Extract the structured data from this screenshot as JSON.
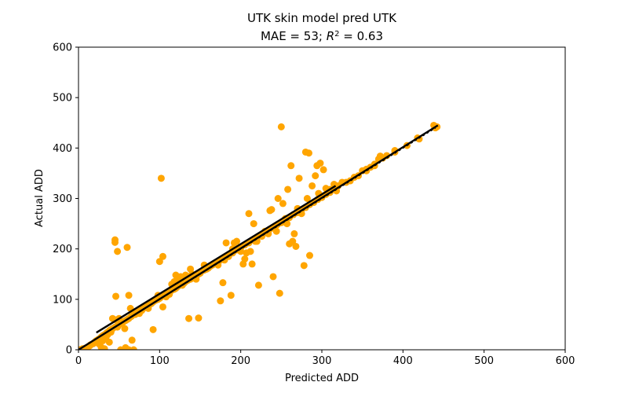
{
  "chart_data": {
    "type": "scatter",
    "title_line1": "UTK skin model pred UTK",
    "title_line2": {
      "prefix": "MAE = 53; ",
      "r2_symbol": "R",
      "r2_exponent": "2",
      "suffix": " = 0.63"
    },
    "xlabel": "Predicted ADD",
    "ylabel": "Actual ADD",
    "xlim": [
      0,
      600
    ],
    "ylim": [
      0,
      600
    ],
    "xticks": [
      0,
      100,
      200,
      300,
      400,
      500,
      600
    ],
    "yticks": [
      0,
      100,
      200,
      300,
      400,
      500,
      600
    ],
    "grid": false,
    "point_color": "#FFA500",
    "line_color": "#000000",
    "series": [
      {
        "points": [
          [
            2,
            0
          ],
          [
            5,
            2
          ],
          [
            8,
            3
          ],
          [
            10,
            4
          ],
          [
            12,
            6
          ],
          [
            14,
            8
          ],
          [
            15,
            10
          ],
          [
            18,
            12
          ],
          [
            20,
            15
          ],
          [
            22,
            18
          ],
          [
            24,
            20
          ],
          [
            26,
            22
          ],
          [
            28,
            25
          ],
          [
            30,
            28
          ],
          [
            32,
            30
          ],
          [
            35,
            34
          ],
          [
            38,
            38
          ],
          [
            40,
            40
          ],
          [
            42,
            42
          ],
          [
            45,
            45
          ],
          [
            48,
            48
          ],
          [
            50,
            50
          ],
          [
            52,
            52
          ],
          [
            55,
            55
          ],
          [
            58,
            58
          ],
          [
            60,
            60
          ],
          [
            62,
            62
          ],
          [
            65,
            66
          ],
          [
            68,
            70
          ],
          [
            70,
            72
          ],
          [
            72,
            75
          ],
          [
            75,
            78
          ],
          [
            78,
            80
          ],
          [
            80,
            82
          ],
          [
            82,
            85
          ],
          [
            85,
            88
          ],
          [
            88,
            90
          ],
          [
            90,
            92
          ],
          [
            92,
            95
          ],
          [
            95,
            98
          ],
          [
            98,
            100
          ],
          [
            100,
            102
          ],
          [
            102,
            105
          ],
          [
            105,
            108
          ],
          [
            108,
            110
          ],
          [
            110,
            112
          ],
          [
            112,
            115
          ],
          [
            115,
            118
          ],
          [
            118,
            120
          ],
          [
            120,
            122
          ],
          [
            122,
            125
          ],
          [
            125,
            128
          ],
          [
            128,
            130
          ],
          [
            130,
            132
          ],
          [
            132,
            135
          ],
          [
            135,
            138
          ],
          [
            138,
            140
          ],
          [
            140,
            142
          ],
          [
            142,
            145
          ],
          [
            145,
            148
          ],
          [
            148,
            150
          ],
          [
            150,
            152
          ],
          [
            155,
            158
          ],
          [
            160,
            162
          ],
          [
            165,
            168
          ],
          [
            170,
            172
          ],
          [
            175,
            178
          ],
          [
            180,
            182
          ],
          [
            185,
            188
          ],
          [
            190,
            192
          ],
          [
            195,
            198
          ],
          [
            200,
            202
          ],
          [
            205,
            208
          ],
          [
            210,
            212
          ],
          [
            215,
            218
          ],
          [
            220,
            222
          ],
          [
            225,
            228
          ],
          [
            230,
            232
          ],
          [
            235,
            238
          ],
          [
            240,
            242
          ],
          [
            245,
            248
          ],
          [
            250,
            252
          ],
          [
            255,
            258
          ],
          [
            260,
            262
          ],
          [
            265,
            268
          ],
          [
            270,
            272
          ],
          [
            275,
            278
          ],
          [
            280,
            282
          ],
          [
            285,
            288
          ],
          [
            290,
            292
          ],
          [
            295,
            298
          ],
          [
            300,
            302
          ],
          [
            305,
            308
          ],
          [
            310,
            312
          ],
          [
            315,
            318
          ],
          [
            320,
            325
          ],
          [
            330,
            332
          ],
          [
            340,
            342
          ],
          [
            350,
            355
          ],
          [
            355,
            358
          ],
          [
            360,
            362
          ],
          [
            365,
            368
          ],
          [
            370,
            378
          ],
          [
            375,
            380
          ],
          [
            390,
            392
          ],
          [
            420,
            418
          ],
          [
            440,
            440
          ],
          [
            25,
            12
          ],
          [
            28,
            5
          ],
          [
            30,
            18
          ],
          [
            32,
            2
          ],
          [
            34,
            25
          ],
          [
            36,
            30
          ],
          [
            38,
            15
          ],
          [
            40,
            35
          ],
          [
            42,
            62
          ],
          [
            44,
            60
          ],
          [
            45,
            218
          ],
          [
            45,
            213
          ],
          [
            48,
            195
          ],
          [
            46,
            106
          ],
          [
            48,
            45
          ],
          [
            50,
            62
          ],
          [
            52,
            0
          ],
          [
            55,
            55
          ],
          [
            57,
            42
          ],
          [
            58,
            4
          ],
          [
            60,
            203
          ],
          [
            62,
            0
          ],
          [
            62,
            108
          ],
          [
            64,
            82
          ],
          [
            66,
            19
          ],
          [
            68,
            0
          ],
          [
            70,
            70
          ],
          [
            72,
            75
          ],
          [
            75,
            72
          ],
          [
            78,
            78
          ],
          [
            82,
            85
          ],
          [
            86,
            82
          ],
          [
            88,
            90
          ],
          [
            92,
            40
          ],
          [
            95,
            100
          ],
          [
            98,
            108
          ],
          [
            100,
            175
          ],
          [
            102,
            340
          ],
          [
            104,
            185
          ],
          [
            104,
            85
          ],
          [
            108,
            105
          ],
          [
            112,
            110
          ],
          [
            115,
            130
          ],
          [
            118,
            135
          ],
          [
            120,
            148
          ],
          [
            122,
            140
          ],
          [
            126,
            145
          ],
          [
            128,
            128
          ],
          [
            132,
            148
          ],
          [
            136,
            62
          ],
          [
            138,
            160
          ],
          [
            140,
            150
          ],
          [
            145,
            140
          ],
          [
            148,
            63
          ],
          [
            150,
            152
          ],
          [
            155,
            168
          ],
          [
            158,
            160
          ],
          [
            162,
            165
          ],
          [
            168,
            172
          ],
          [
            172,
            168
          ],
          [
            175,
            97
          ],
          [
            178,
            133
          ],
          [
            180,
            178
          ],
          [
            182,
            212
          ],
          [
            185,
            185
          ],
          [
            188,
            108
          ],
          [
            190,
            200
          ],
          [
            192,
            212
          ],
          [
            195,
            215
          ],
          [
            198,
            200
          ],
          [
            200,
            195
          ],
          [
            203,
            170
          ],
          [
            205,
            180
          ],
          [
            207,
            192
          ],
          [
            210,
            270
          ],
          [
            212,
            195
          ],
          [
            214,
            170
          ],
          [
            216,
            250
          ],
          [
            218,
            215
          ],
          [
            220,
            215
          ],
          [
            222,
            128
          ],
          [
            226,
            225
          ],
          [
            230,
            235
          ],
          [
            234,
            230
          ],
          [
            236,
            276
          ],
          [
            238,
            278
          ],
          [
            240,
            145
          ],
          [
            242,
            240
          ],
          [
            244,
            235
          ],
          [
            246,
            300
          ],
          [
            248,
            112
          ],
          [
            250,
            442
          ],
          [
            252,
            290
          ],
          [
            255,
            260
          ],
          [
            257,
            250
          ],
          [
            258,
            318
          ],
          [
            260,
            210
          ],
          [
            262,
            365
          ],
          [
            264,
            215
          ],
          [
            266,
            230
          ],
          [
            268,
            205
          ],
          [
            270,
            280
          ],
          [
            272,
            340
          ],
          [
            275,
            270
          ],
          [
            278,
            167
          ],
          [
            280,
            392
          ],
          [
            282,
            300
          ],
          [
            284,
            390
          ],
          [
            285,
            187
          ],
          [
            288,
            325
          ],
          [
            292,
            345
          ],
          [
            294,
            365
          ],
          [
            296,
            310
          ],
          [
            298,
            370
          ],
          [
            300,
            305
          ],
          [
            302,
            357
          ],
          [
            305,
            320
          ],
          [
            310,
            318
          ],
          [
            315,
            328
          ],
          [
            318,
            315
          ],
          [
            325,
            332
          ],
          [
            335,
            335
          ],
          [
            345,
            345
          ],
          [
            355,
            355
          ],
          [
            365,
            365
          ],
          [
            372,
            384
          ],
          [
            380,
            385
          ],
          [
            390,
            395
          ],
          [
            405,
            405
          ],
          [
            418,
            420
          ],
          [
            442,
            442
          ],
          [
            438,
            445
          ]
        ]
      }
    ],
    "lines": [
      {
        "style": "solid",
        "x": [
          0,
          443
        ],
        "y": [
          0,
          445
        ]
      },
      {
        "style": "solid",
        "x": [
          22,
          317
        ],
        "y": [
          34,
          325
        ]
      },
      {
        "style": "dashed",
        "x": [
          0,
          440
        ],
        "y": [
          0,
          440
        ]
      }
    ]
  }
}
